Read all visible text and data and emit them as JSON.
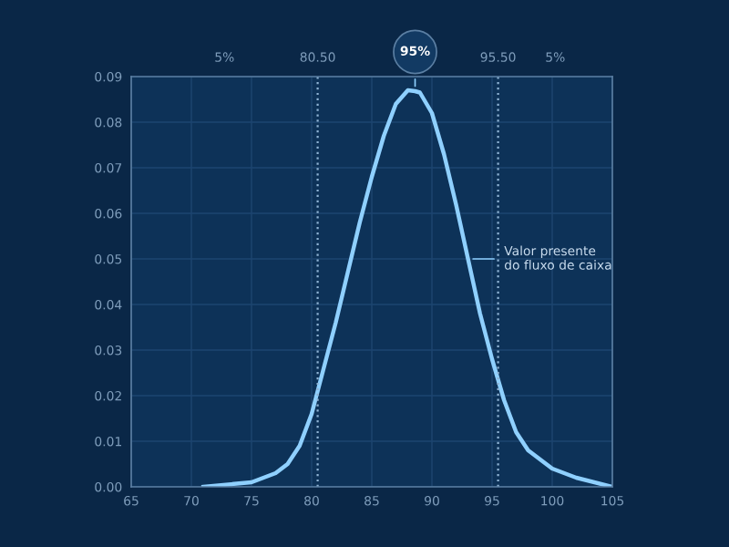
{
  "chart_data": {
    "type": "line",
    "x": [
      71,
      75,
      77,
      78,
      79,
      80,
      81,
      82,
      83,
      84,
      85,
      86,
      87,
      88,
      88.6,
      89,
      90,
      91,
      92,
      93,
      94,
      95,
      96,
      97,
      98,
      100,
      102,
      105
    ],
    "series": [
      {
        "color": "#8fd0ff",
        "values": [
          0.0,
          0.001,
          0.003,
          0.005,
          0.009,
          0.016,
          0.026,
          0.036,
          0.047,
          0.058,
          0.068,
          0.077,
          0.084,
          0.087,
          0.0868,
          0.0865,
          0.082,
          0.073,
          0.062,
          0.05,
          0.038,
          0.028,
          0.019,
          0.012,
          0.008,
          0.004,
          0.002,
          0.0
        ]
      }
    ],
    "xlim": [
      65,
      105
    ],
    "xticks": [
      65,
      70,
      75,
      80,
      85,
      90,
      95,
      100,
      105
    ],
    "ylim": [
      0,
      0.09
    ],
    "yticks": [
      {
        "value": 0,
        "label": "0.00"
      },
      {
        "value": 0.01,
        "label": "0.01"
      },
      {
        "value": 0.02,
        "label": "0.02"
      },
      {
        "value": 0.03,
        "label": "0.03"
      },
      {
        "value": 0.04,
        "label": "0.04"
      },
      {
        "value": 0.05,
        "label": "0.05"
      },
      {
        "value": 0.06,
        "label": "0.06"
      },
      {
        "value": 0.07,
        "label": "0.07"
      },
      {
        "value": 0.08,
        "label": "0.08"
      },
      {
        "value": 0.09,
        "label": "0.09"
      }
    ],
    "ref_lines": [
      {
        "axis": "x",
        "value": 80.5,
        "label": "80.50",
        "line_style": "dotted",
        "color": "#8fb3d4"
      },
      {
        "axis": "x",
        "value": 95.5,
        "label": "95.50",
        "line_style": "dotted",
        "color": "#8fb3d4"
      }
    ],
    "annotations": [
      "5%",
      "5%",
      {
        "text": "95%",
        "x": 88.6,
        "y": 0.0868
      },
      {
        "text": "Valor presente\ndo fluxo de caixa",
        "x": 93,
        "y": 0.05
      }
    ],
    "grid": true,
    "line_style": "solid",
    "marker": "none"
  }
}
